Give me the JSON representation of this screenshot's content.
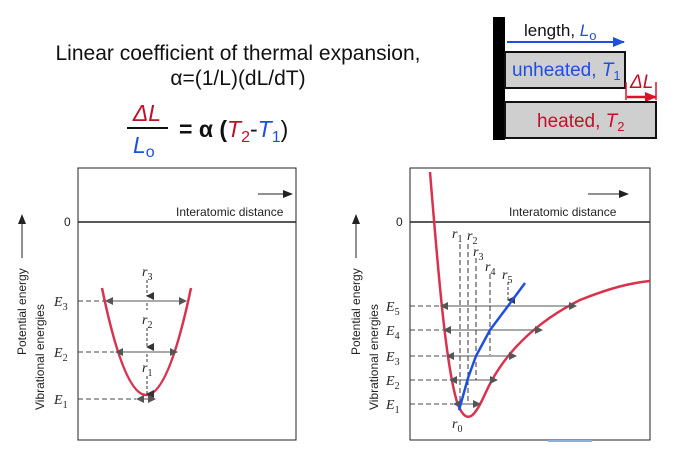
{
  "header": {
    "title_line1": "Linear coefficient of thermal expansion,",
    "title_line2": "α=(1/L)(dL/dT)",
    "eq_delta_l": "ΔL",
    "eq_l": "L",
    "eq_l_sub": "o",
    "eq_equals": "= α (",
    "eq_t2": "T",
    "eq_t2_sub": "2",
    "eq_minus": "-",
    "eq_t1": "T",
    "eq_t1_sub": "1",
    "eq_close": ")"
  },
  "rod_diagram": {
    "length_label": "length, ",
    "length_symbol": "L",
    "length_sub": "o",
    "unheated_label": "unheated, ",
    "unheated_symbol": "T",
    "unheated_sub": "1",
    "heated_label": "heated, ",
    "heated_symbol": "T",
    "heated_sub": "2",
    "delta_label": "ΔL"
  },
  "left_plot": {
    "zero_label": "0",
    "x_axis_label": "Interatomic distance",
    "y_axis_outer": "Potential energy",
    "y_axis_inner": "Vibrational energies",
    "levels": [
      {
        "name": "E",
        "sub": "1"
      },
      {
        "name": "E",
        "sub": "2"
      },
      {
        "name": "E",
        "sub": "3"
      }
    ],
    "r_labels": [
      {
        "name": "r",
        "sub": "1"
      },
      {
        "name": "r",
        "sub": "2"
      },
      {
        "name": "r",
        "sub": "3"
      }
    ]
  },
  "right_plot": {
    "zero_label": "0",
    "x_axis_label": "Interatomic distance",
    "y_axis_outer": "Potential energy",
    "y_axis_inner": "Vibrational energies",
    "levels": [
      {
        "name": "E",
        "sub": "1"
      },
      {
        "name": "E",
        "sub": "2"
      },
      {
        "name": "E",
        "sub": "3"
      },
      {
        "name": "E",
        "sub": "4"
      },
      {
        "name": "E",
        "sub": "5"
      }
    ],
    "r_labels": [
      {
        "name": "r",
        "sub": "1"
      },
      {
        "name": "r",
        "sub": "2"
      },
      {
        "name": "r",
        "sub": "3"
      },
      {
        "name": "r",
        "sub": "4"
      },
      {
        "name": "r",
        "sub": "5"
      }
    ],
    "r0_label": {
      "name": "r",
      "sub": "0"
    }
  },
  "colors": {
    "blue": "#1f4fe0",
    "red": "#c0102a",
    "curve": "#d8324f",
    "gray_bar": "#cfcfcf",
    "black": "#000000"
  }
}
